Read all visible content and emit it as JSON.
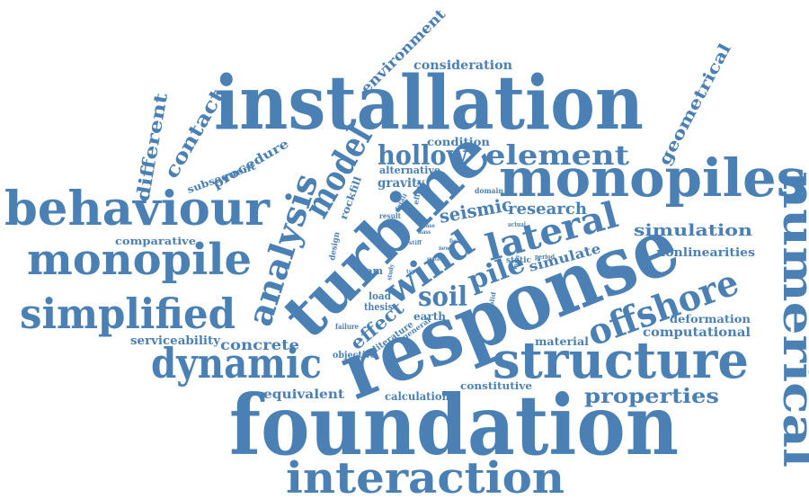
{
  "color": "#4a80b4",
  "words": {
    "installation": "installation",
    "foundation": "foundation",
    "response": "response",
    "turbine": "turbine",
    "monopiles": "monopiles",
    "structure": "structure",
    "behaviour": "behaviour",
    "monopile": "monopile",
    "simplified": "simplified",
    "dynamic": "dynamic",
    "interaction": "interaction",
    "numerical": "numerical",
    "offshore": "offshore",
    "analysis": "analysis",
    "model": "model",
    "wind": "wind",
    "lateral": "lateral",
    "hollow": "hollow",
    "element": "element",
    "soil": "soil",
    "pile": "pile",
    "properties": "properties",
    "environment": "environment",
    "consideration": "consideration",
    "geometrical": "geometrical",
    "different": "different",
    "contact": "contact",
    "condition": "condition",
    "procedure": "procedure",
    "subsequent": "subsequent",
    "alternative": "alternative",
    "gravity": "gravity",
    "rockfill": "rockfill",
    "effort": "effort",
    "domain": "domain",
    "research": "research",
    "seismic": "seismic",
    "simulation": "simulation",
    "nonlinearities": "nonlinearities",
    "comparative": "comparative",
    "result": "result",
    "design": "design",
    "study": "study",
    "actual": "actual",
    "dam": "dam",
    "static": "static",
    "simulate": "simulate",
    "load": "load",
    "thesis": "thesis",
    "earth": "earth",
    "effect": "effect",
    "literature": "literature",
    "general": "general",
    "failure": "failure",
    "serviceability": "serviceability",
    "concrete": "concrete",
    "objective": "objective",
    "material": "material",
    "computational": "computational",
    "deformation": "deformation",
    "equivalent": "equivalent",
    "calculation": "calculation",
    "constitutive": "constitutive",
    "period": "period",
    "form": "form",
    "solid": "solid",
    "type": "type",
    "detail": "detail",
    "new": "new",
    "mass": "mass",
    "field": "field",
    "system": "system",
    "stiff": "stiff",
    "base": "base"
  }
}
